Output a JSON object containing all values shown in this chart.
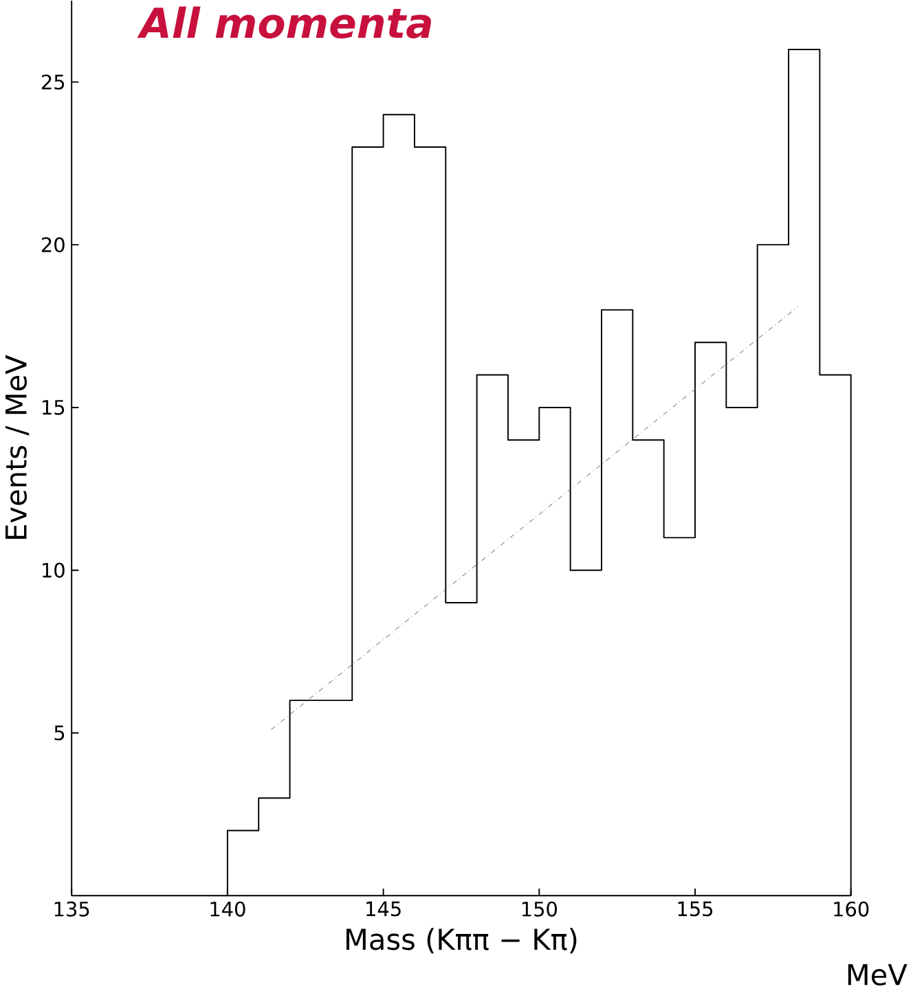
{
  "chart_data": {
    "type": "histogram",
    "title": "**All momenta**",
    "xlabel": "Mass (Kππ − Kπ)",
    "ylabel": "Events / MeV",
    "annotations": [
      "MeV"
    ],
    "bins": [
      140,
      141,
      142,
      143,
      144,
      145,
      146,
      147,
      148,
      149,
      150,
      151,
      152,
      153,
      154,
      155,
      156,
      157,
      158,
      159,
      160
    ],
    "values": [
      2,
      3,
      6,
      6,
      23,
      24,
      23,
      9,
      16,
      14,
      15,
      10,
      18,
      14,
      11,
      17,
      15,
      20,
      26,
      16
    ],
    "color": "#000000",
    "series": [
      {
        "type": "line",
        "x": [
          141.4,
          158.3
        ],
        "values": [
          5.1,
          18.1
        ],
        "color": "#555555",
        "line_style": "dashdotted"
      }
    ],
    "xlim": [
      135,
      160
    ],
    "ylim": [
      0,
      27.5
    ],
    "xticks": [
      135,
      140,
      145,
      150,
      155,
      160
    ],
    "yticks": [
      5,
      10,
      15,
      20,
      25
    ]
  }
}
